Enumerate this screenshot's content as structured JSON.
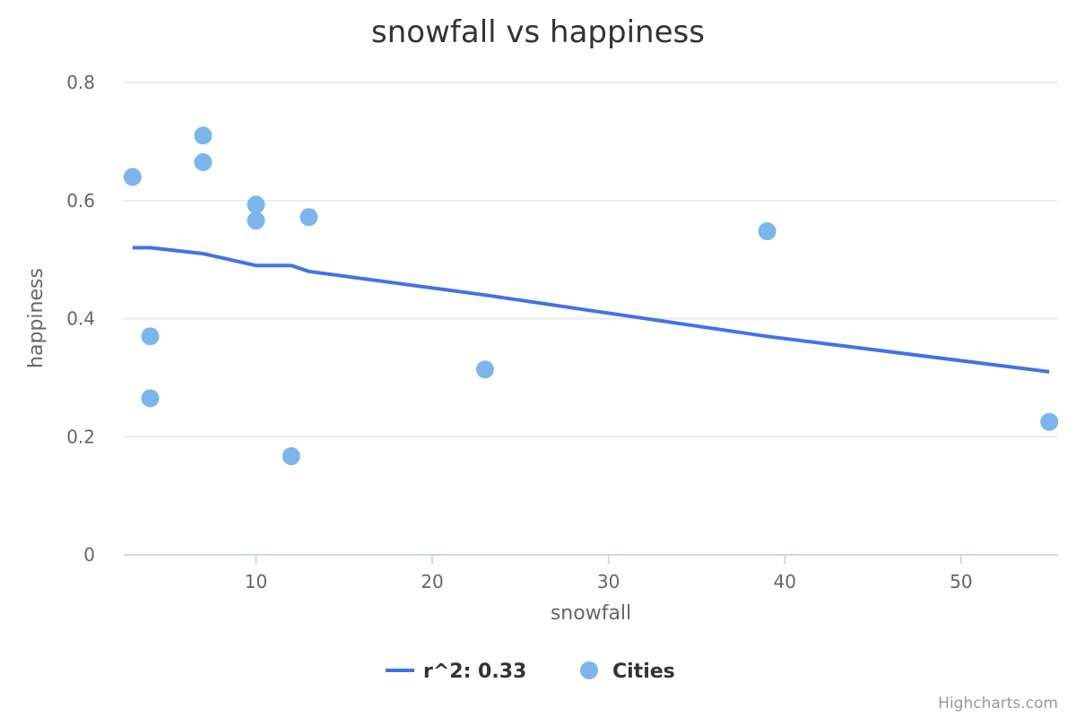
{
  "chart_data": {
    "type": "scatter",
    "title": "snowfall vs happiness",
    "xlabel": "snowfall",
    "ylabel": "happiness",
    "xlim": [
      2.5,
      55.5
    ],
    "ylim": [
      0,
      0.8
    ],
    "xticks": [
      10,
      20,
      30,
      40,
      50
    ],
    "yticks": [
      0,
      0.2,
      0.4,
      0.6,
      0.8
    ],
    "xtick_labels": [
      "10",
      "20",
      "30",
      "40",
      "50"
    ],
    "ytick_labels": [
      "0",
      "0.2",
      "0.4",
      "0.6",
      "0.8"
    ],
    "grid": true,
    "legend_position": "bottom-center",
    "series": [
      {
        "name": "r^2: 0.33",
        "type": "line",
        "color": "#4272e8",
        "points": [
          [
            3,
            0.52
          ],
          [
            4,
            0.52
          ],
          [
            7,
            0.51
          ],
          [
            10,
            0.49
          ],
          [
            12,
            0.49
          ],
          [
            13,
            0.48
          ],
          [
            23,
            0.44
          ],
          [
            39,
            0.37
          ],
          [
            55,
            0.31
          ]
        ]
      },
      {
        "name": "Cities",
        "type": "scatter",
        "color": "#7cb5ec",
        "points": [
          [
            3,
            0.64
          ],
          [
            4,
            0.37
          ],
          [
            4,
            0.265
          ],
          [
            7,
            0.71
          ],
          [
            7,
            0.665
          ],
          [
            10,
            0.593
          ],
          [
            10,
            0.566
          ],
          [
            12,
            0.167
          ],
          [
            13,
            0.572
          ],
          [
            23,
            0.314
          ],
          [
            39,
            0.548
          ],
          [
            55,
            0.225
          ]
        ]
      }
    ]
  },
  "credits": "Highcharts.com"
}
